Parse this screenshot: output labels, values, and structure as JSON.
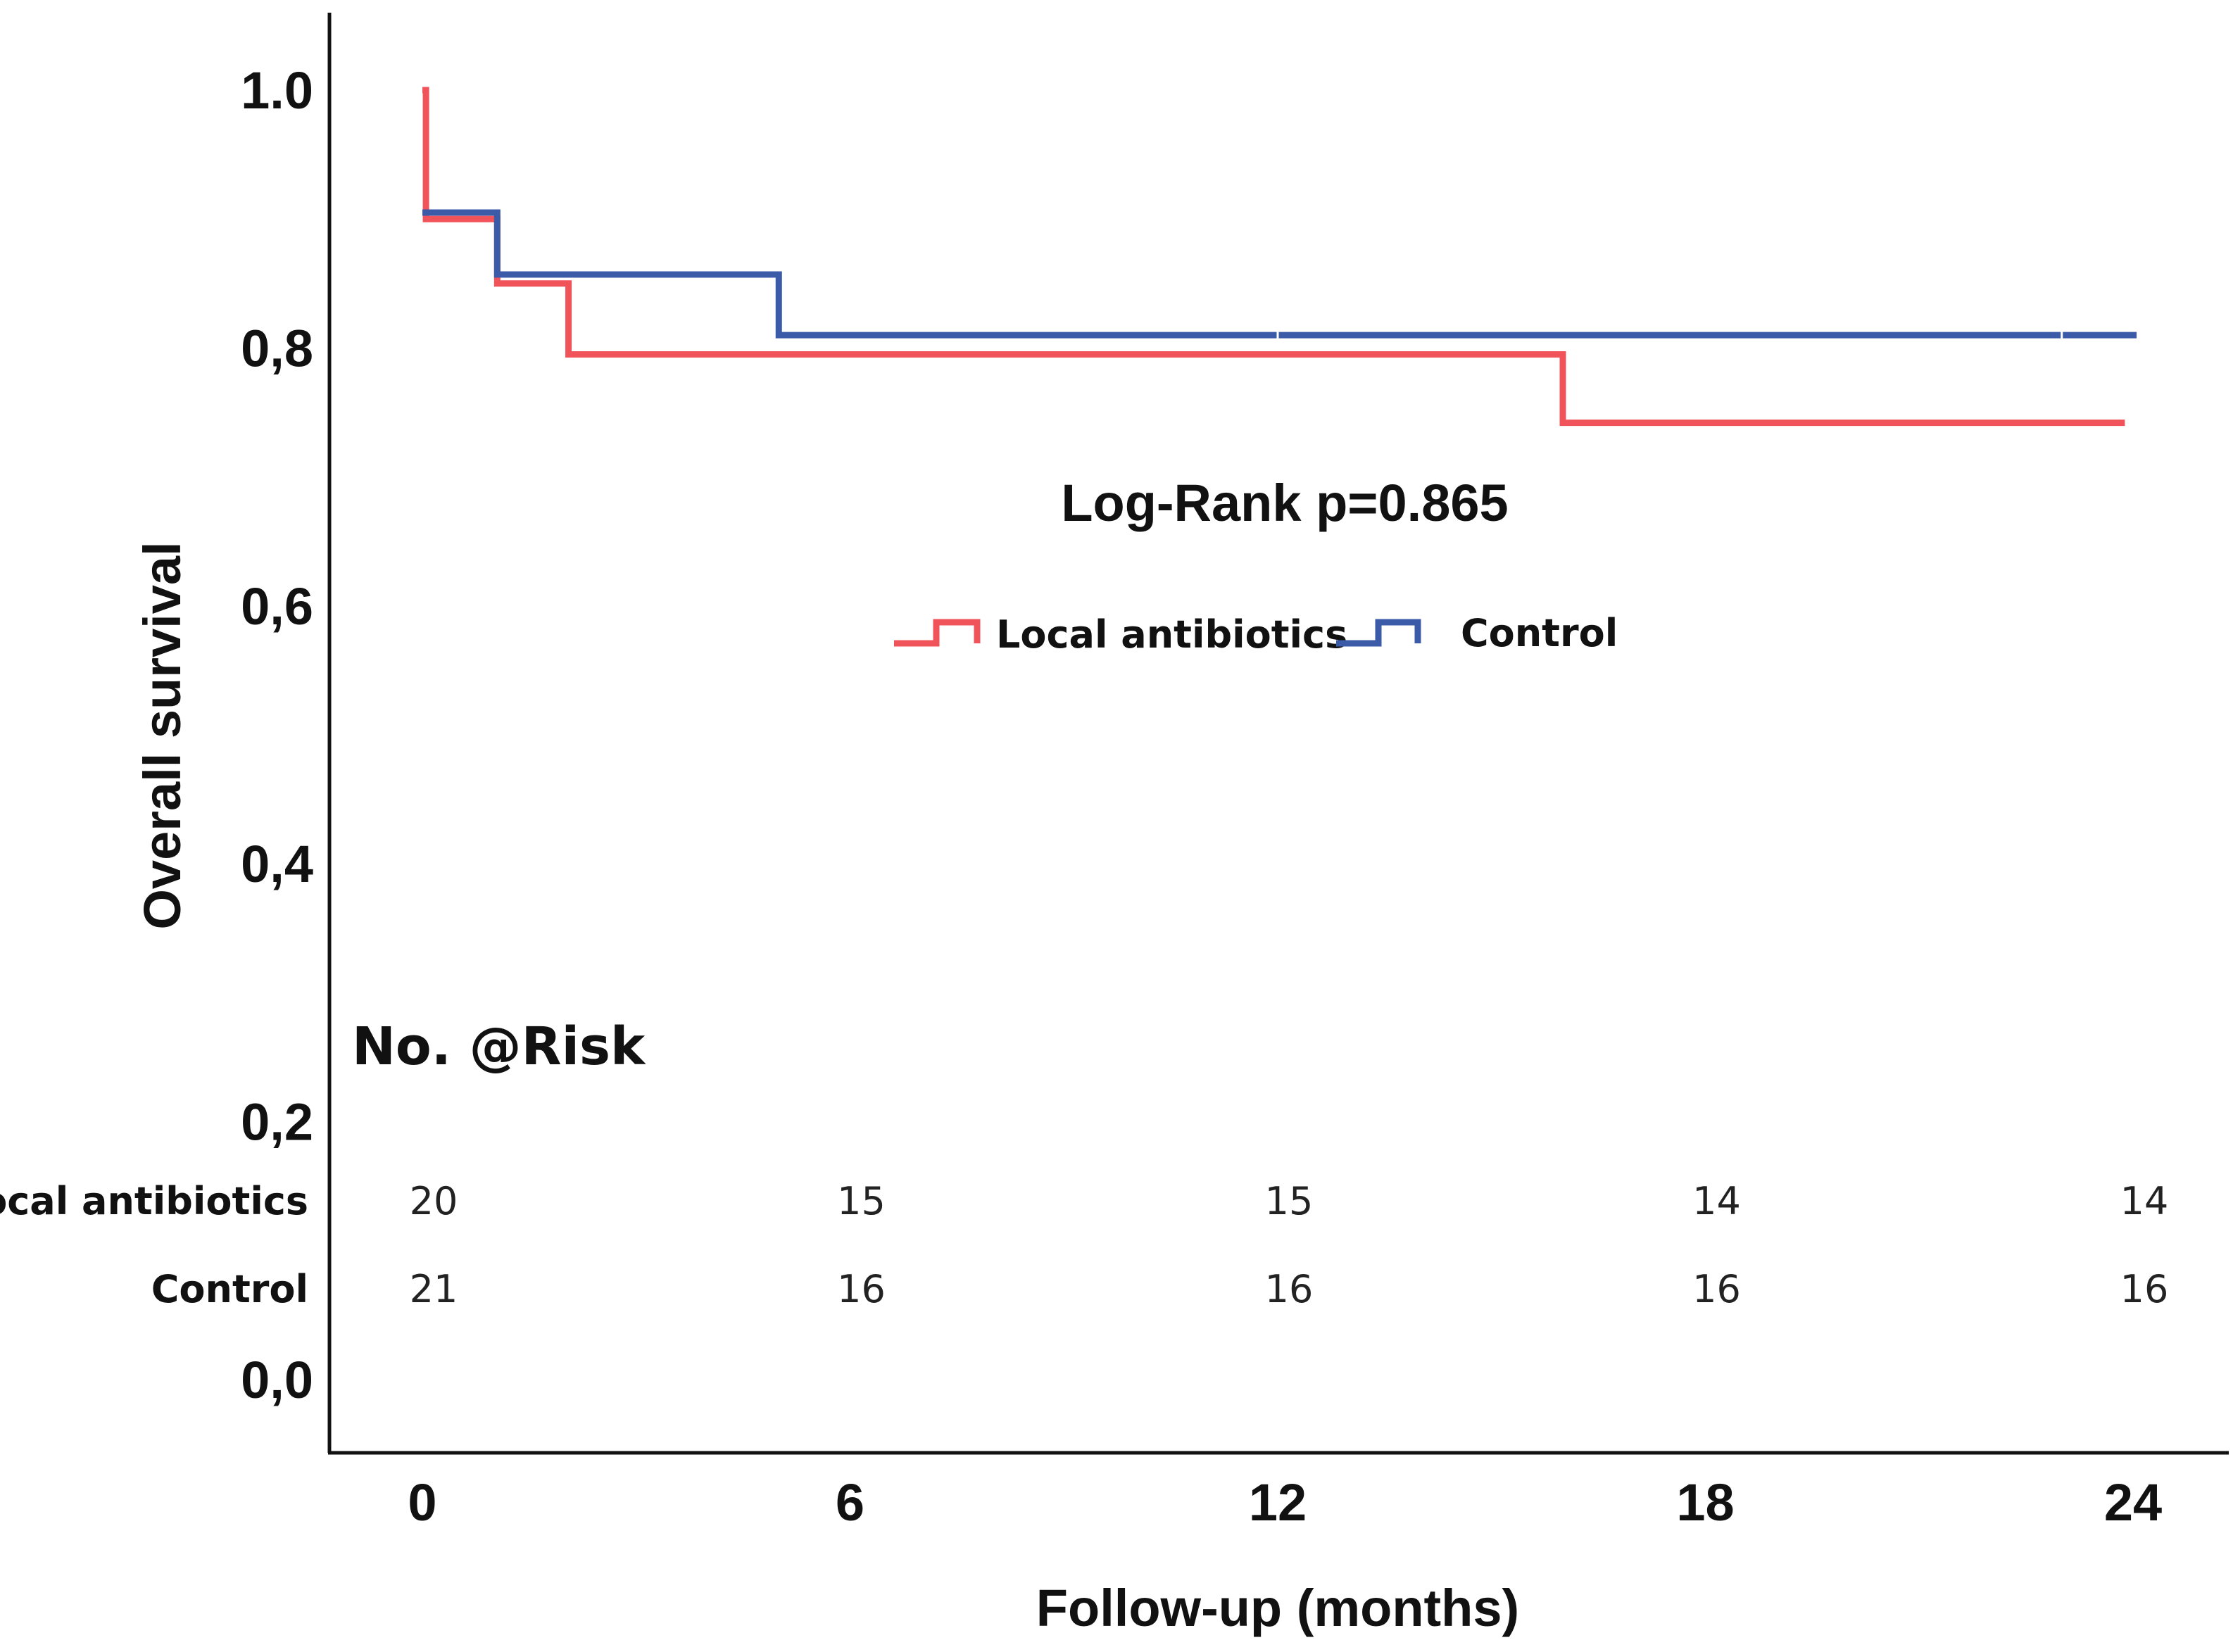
{
  "chart_data": {
    "type": "line",
    "subtype": "kaplan-meier step",
    "title": "",
    "xlabel": "Follow-up (months)",
    "ylabel": "Overall survival",
    "xlim": [
      -1,
      25.3
    ],
    "ylim": [
      -0.11,
      1.12
    ],
    "x_ticks": [
      0,
      6,
      12,
      18,
      24
    ],
    "x_tick_labels": [
      "0",
      "6",
      "12",
      "18",
      "24"
    ],
    "y_ticks": [
      1.0,
      0.8,
      0.6,
      0.4,
      0.2,
      0.0
    ],
    "y_tick_labels": [
      "1.0",
      "0,8",
      "0,6",
      "0,4",
      "0,2",
      "0,0"
    ],
    "annotation": "Log-Rank p=0.865",
    "legend_placement": "center",
    "series": [
      {
        "name": "Local antibiotics",
        "color": "#f0535a",
        "steps": [
          [
            0,
            1.0
          ],
          [
            0.05,
            0.9
          ],
          [
            1.05,
            0.85
          ],
          [
            2.05,
            0.795
          ],
          [
            16.0,
            0.742
          ],
          [
            23.9,
            0.742
          ]
        ],
        "censor_marks": [
          [
            23.9,
            0.742
          ]
        ]
      },
      {
        "name": "Control",
        "color": "#3b5aa8",
        "steps": [
          [
            0,
            0.905
          ],
          [
            1.05,
            0.857
          ],
          [
            5.0,
            0.81
          ],
          [
            24.05,
            0.81
          ]
        ],
        "censor_marks": [
          [
            12.0,
            0.81
          ],
          [
            23.0,
            0.81
          ]
        ]
      }
    ],
    "risk_table": {
      "title": "No. @Risk",
      "time_points": [
        0,
        6,
        12,
        18,
        24
      ],
      "rows": [
        {
          "label": "Local antibiotics",
          "values": [
            "20",
            "15",
            "15",
            "14",
            "14"
          ]
        },
        {
          "label": "Control",
          "values": [
            "21",
            "16",
            "16",
            "16",
            "16"
          ]
        }
      ]
    }
  }
}
